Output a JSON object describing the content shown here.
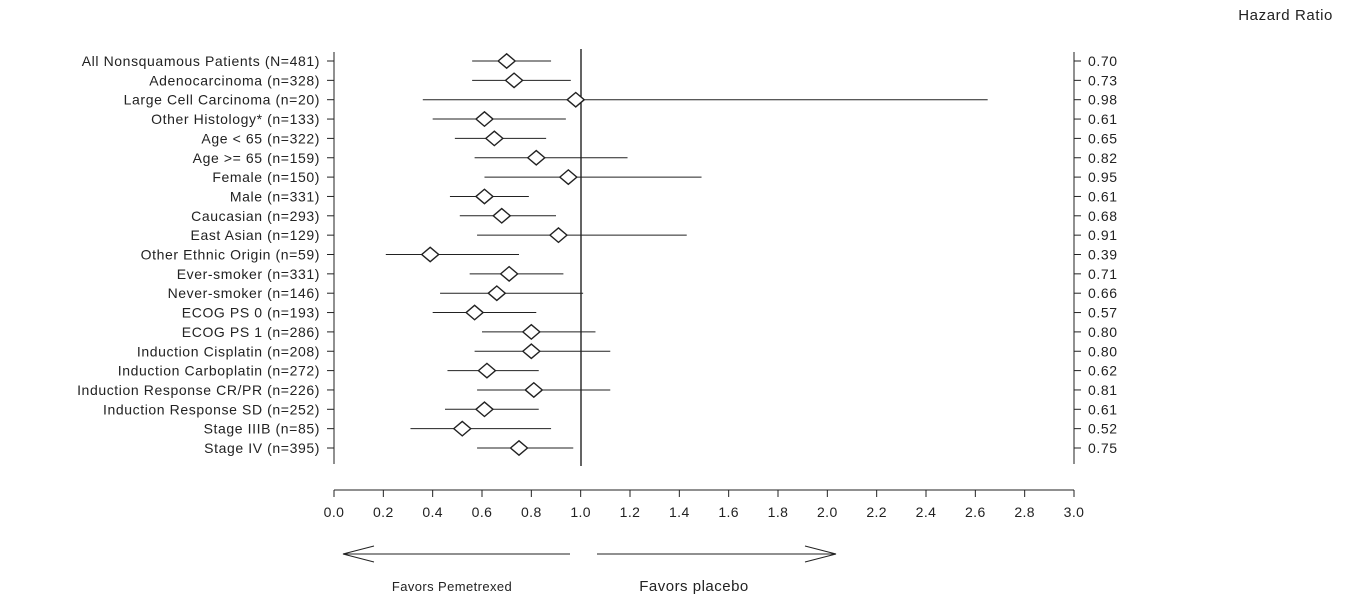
{
  "chart_data": {
    "type": "forest",
    "header_right": "Hazard Ratio",
    "reference_line": 1.0,
    "xlim": [
      0.0,
      3.0
    ],
    "x_ticks": [
      "0.0",
      "0.2",
      "0.4",
      "0.6",
      "0.8",
      "1.0",
      "1.2",
      "1.4",
      "1.6",
      "1.8",
      "2.0",
      "2.2",
      "2.4",
      "2.6",
      "2.8",
      "3.0"
    ],
    "favors_left": "Favors Pemetrexed",
    "favors_right": "Favors placebo",
    "rows": [
      {
        "label": "All Nonsquamous Patients (N=481)",
        "hr": 0.7,
        "hr_text": "0.70",
        "lo": 0.56,
        "hi": 0.88
      },
      {
        "label": "Adenocarcinoma (n=328)",
        "hr": 0.73,
        "hr_text": "0.73",
        "lo": 0.56,
        "hi": 0.96
      },
      {
        "label": "Large Cell Carcinoma (n=20)",
        "hr": 0.98,
        "hr_text": "0.98",
        "lo": 0.36,
        "hi": 2.65
      },
      {
        "label": "Other Histology* (n=133)",
        "hr": 0.61,
        "hr_text": "0.61",
        "lo": 0.4,
        "hi": 0.94
      },
      {
        "label": "Age < 65 (n=322)",
        "hr": 0.65,
        "hr_text": "0.65",
        "lo": 0.49,
        "hi": 0.86
      },
      {
        "label": "Age >= 65 (n=159)",
        "hr": 0.82,
        "hr_text": "0.82",
        "lo": 0.57,
        "hi": 1.19
      },
      {
        "label": "Female (n=150)",
        "hr": 0.95,
        "hr_text": "0.95",
        "lo": 0.61,
        "hi": 1.49
      },
      {
        "label": "Male (n=331)",
        "hr": 0.61,
        "hr_text": "0.61",
        "lo": 0.47,
        "hi": 0.79
      },
      {
        "label": "Caucasian (n=293)",
        "hr": 0.68,
        "hr_text": "0.68",
        "lo": 0.51,
        "hi": 0.9
      },
      {
        "label": "East Asian (n=129)",
        "hr": 0.91,
        "hr_text": "0.91",
        "lo": 0.58,
        "hi": 1.43
      },
      {
        "label": "Other Ethnic Origin (n=59)",
        "hr": 0.39,
        "hr_text": "0.39",
        "lo": 0.21,
        "hi": 0.75
      },
      {
        "label": "Ever-smoker (n=331)",
        "hr": 0.71,
        "hr_text": "0.71",
        "lo": 0.55,
        "hi": 0.93
      },
      {
        "label": "Never-smoker (n=146)",
        "hr": 0.66,
        "hr_text": "0.66",
        "lo": 0.43,
        "hi": 1.01
      },
      {
        "label": "ECOG PS 0 (n=193)",
        "hr": 0.57,
        "hr_text": "0.57",
        "lo": 0.4,
        "hi": 0.82
      },
      {
        "label": "ECOG PS 1 (n=286)",
        "hr": 0.8,
        "hr_text": "0.80",
        "lo": 0.6,
        "hi": 1.06
      },
      {
        "label": "Induction Cisplatin (n=208)",
        "hr": 0.8,
        "hr_text": "0.80",
        "lo": 0.57,
        "hi": 1.12
      },
      {
        "label": "Induction Carboplatin (n=272)",
        "hr": 0.62,
        "hr_text": "0.62",
        "lo": 0.46,
        "hi": 0.83
      },
      {
        "label": "Induction Response CR/PR (n=226)",
        "hr": 0.81,
        "hr_text": "0.81",
        "lo": 0.58,
        "hi": 1.12
      },
      {
        "label": "Induction Response SD (n=252)",
        "hr": 0.61,
        "hr_text": "0.61",
        "lo": 0.45,
        "hi": 0.83
      },
      {
        "label": "Stage IIIB (n=85)",
        "hr": 0.52,
        "hr_text": "0.52",
        "lo": 0.31,
        "hi": 0.88
      },
      {
        "label": "Stage IV (n=395)",
        "hr": 0.75,
        "hr_text": "0.75",
        "lo": 0.58,
        "hi": 0.97
      }
    ]
  }
}
